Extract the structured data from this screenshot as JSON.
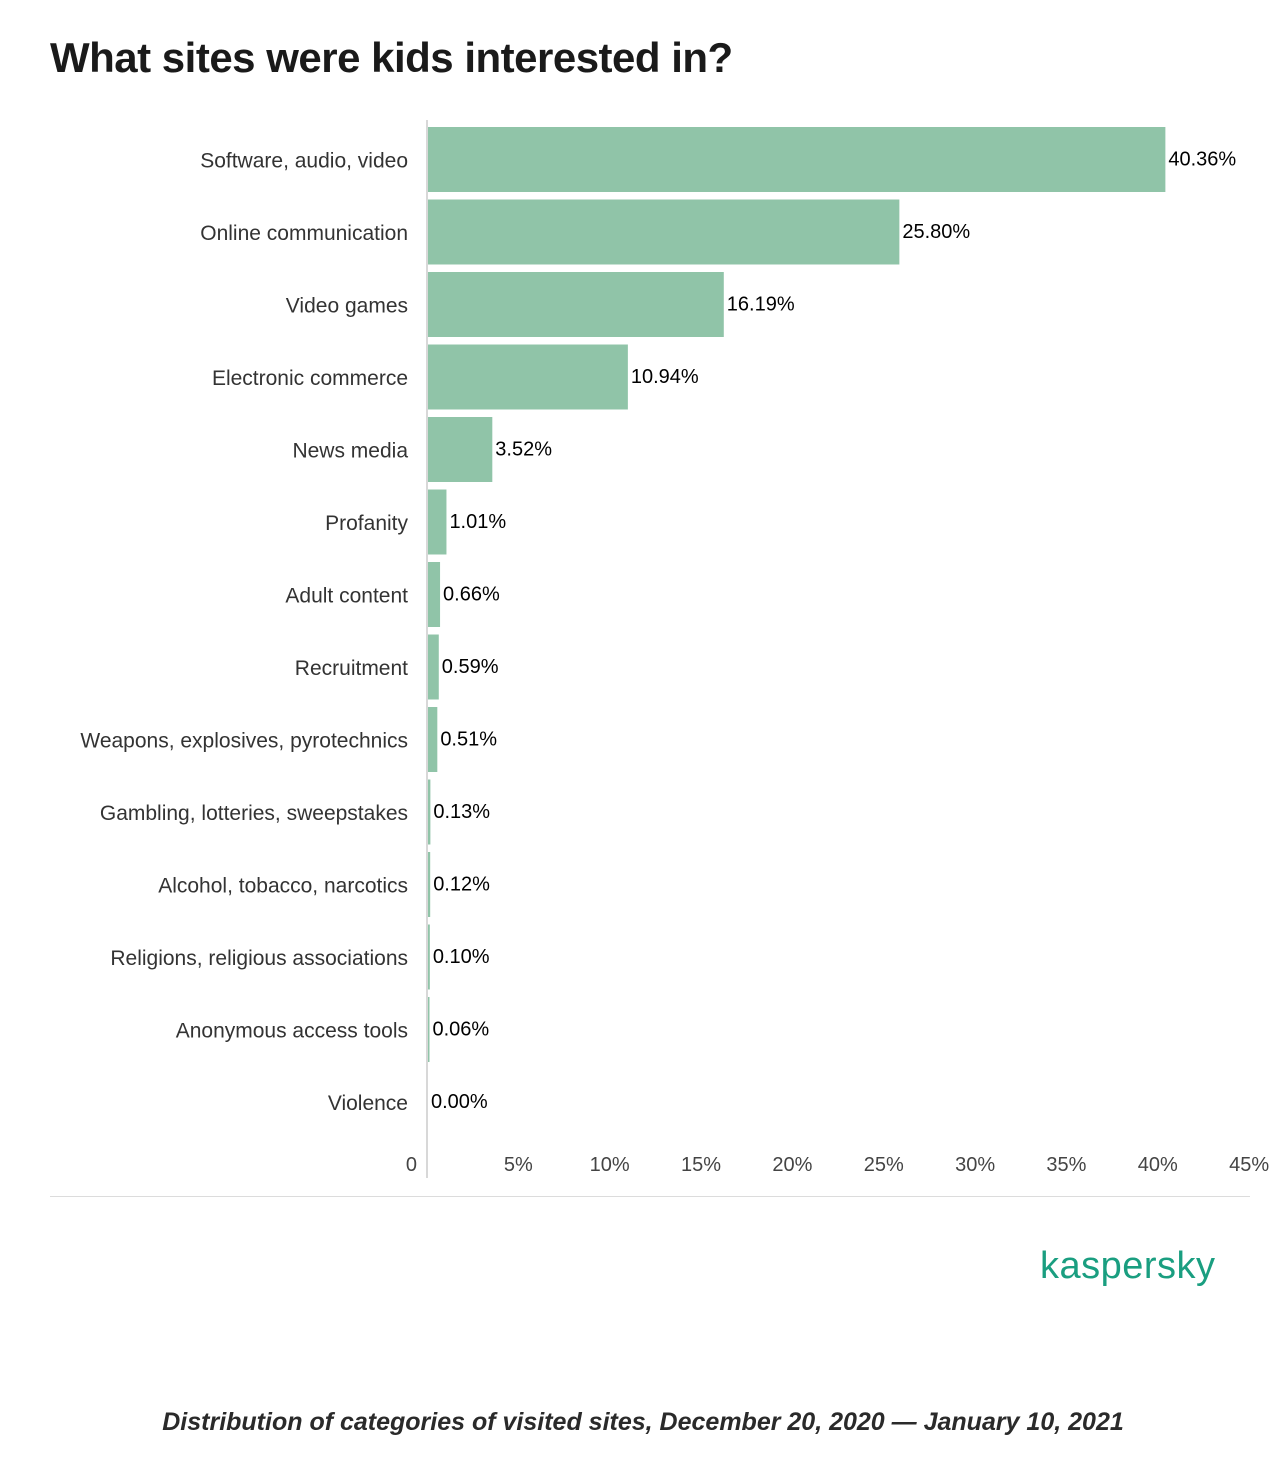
{
  "page": {
    "title": "What sites were kids interested in?",
    "caption": "Distribution of categories of visited sites, December 20, 2020 — January 10, 2021",
    "brand": "kaspersky"
  },
  "colors": {
    "bar": "#90c4a8",
    "brand": "#1a9e80"
  },
  "chart_data": {
    "type": "bar",
    "orientation": "horizontal",
    "categories": [
      "Software, audio, video",
      "Online communication",
      "Video games",
      "Electronic commerce",
      "News media",
      "Profanity",
      "Adult content",
      "Recruitment",
      "Weapons, explosives, pyrotechnics",
      "Gambling, lotteries, sweepstakes",
      "Alcohol, tobacco, narcotics",
      "Religions, religious associations",
      "Anonymous access tools",
      "Violence"
    ],
    "values": [
      40.36,
      25.8,
      16.19,
      10.94,
      3.52,
      1.01,
      0.66,
      0.59,
      0.51,
      0.13,
      0.12,
      0.1,
      0.06,
      0.0
    ],
    "data_labels": [
      "40.36%",
      "25.80%",
      "16.19%",
      "10.94%",
      "3.52%",
      "1.01%",
      "0.66%",
      "0.59%",
      "0.51%",
      "0.13%",
      "0.12%",
      "0.10%",
      "0.06%",
      "0.00%"
    ],
    "xlim": [
      0,
      45
    ],
    "xticks": [
      0,
      5,
      10,
      15,
      20,
      25,
      30,
      35,
      40,
      45
    ],
    "xtick_labels": [
      "0",
      "5%",
      "10%",
      "15%",
      "20%",
      "25%",
      "30%",
      "35%",
      "40%",
      "45%"
    ],
    "grid": false,
    "legend": "none"
  }
}
